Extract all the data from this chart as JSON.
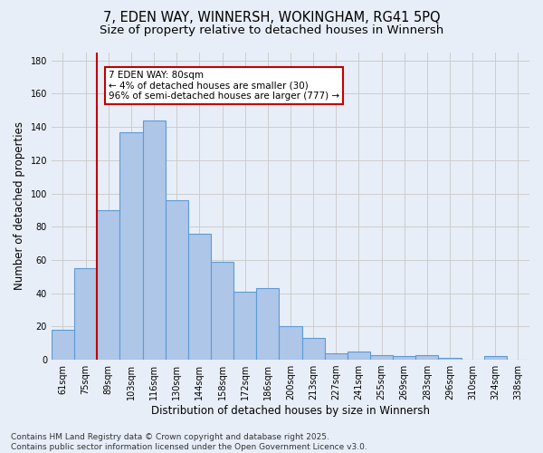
{
  "title_line1": "7, EDEN WAY, WINNERSH, WOKINGHAM, RG41 5PQ",
  "title_line2": "Size of property relative to detached houses in Winnersh",
  "xlabel": "Distribution of detached houses by size in Winnersh",
  "ylabel": "Number of detached properties",
  "categories": [
    "61sqm",
    "75sqm",
    "89sqm",
    "103sqm",
    "116sqm",
    "130sqm",
    "144sqm",
    "158sqm",
    "172sqm",
    "186sqm",
    "200sqm",
    "213sqm",
    "227sqm",
    "241sqm",
    "255sqm",
    "269sqm",
    "283sqm",
    "296sqm",
    "310sqm",
    "324sqm",
    "338sqm"
  ],
  "values": [
    18,
    55,
    90,
    137,
    144,
    96,
    76,
    59,
    41,
    43,
    20,
    13,
    4,
    5,
    3,
    2,
    3,
    1,
    0,
    2,
    0
  ],
  "bar_color": "#aec6e8",
  "bar_edge_color": "#5b9bd5",
  "annotation_line1": "7 EDEN WAY: 80sqm",
  "annotation_line2": "← 4% of detached houses are smaller (30)",
  "annotation_line3": "96% of semi-detached houses are larger (777) →",
  "vline_x": 1.5,
  "vline_color": "#c00000",
  "background_color": "#e8eef8",
  "footer_text": "Contains HM Land Registry data © Crown copyright and database right 2025.\nContains public sector information licensed under the Open Government Licence v3.0.",
  "ylim": [
    0,
    185
  ],
  "yticks": [
    0,
    20,
    40,
    60,
    80,
    100,
    120,
    140,
    160,
    180
  ],
  "grid_color": "#cccccc",
  "title_fontsize": 10.5,
  "subtitle_fontsize": 9.5,
  "tick_fontsize": 7,
  "ylabel_fontsize": 8.5,
  "xlabel_fontsize": 8.5,
  "footer_fontsize": 6.5,
  "ann_fontsize": 7.5
}
